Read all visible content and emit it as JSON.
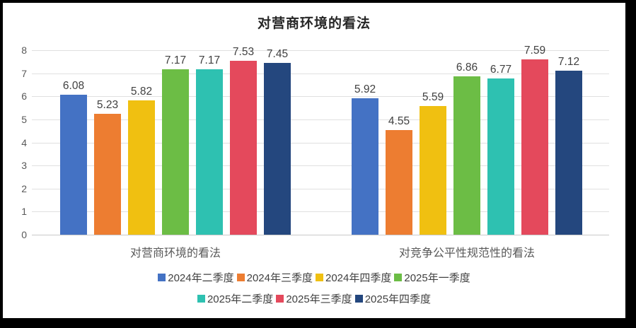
{
  "chart_data": {
    "type": "bar",
    "title": "对营商环境的看法",
    "categories": [
      "对营商环境的看法",
      "对竞争公平性规范性的看法"
    ],
    "series": [
      {
        "name": "2024年二季度",
        "color": "#4472C4",
        "values": [
          6.08,
          5.92
        ]
      },
      {
        "name": "2024年三季度",
        "color": "#ED7D31",
        "values": [
          5.23,
          4.55
        ]
      },
      {
        "name": "2024年四季度",
        "color": "#F0C011",
        "values": [
          5.82,
          5.59
        ]
      },
      {
        "name": "2025年一季度",
        "color": "#6CBD45",
        "values": [
          7.17,
          6.86
        ]
      },
      {
        "name": "2025年二季度",
        "color": "#2EC1B1",
        "values": [
          7.17,
          6.77
        ]
      },
      {
        "name": "2025年三季度",
        "color": "#E4495C",
        "values": [
          7.53,
          7.59
        ]
      },
      {
        "name": "2025年四季度",
        "color": "#24477E",
        "values": [
          7.45,
          7.12
        ]
      }
    ],
    "ylim": [
      0,
      8
    ],
    "yticks": [
      0,
      1,
      2,
      3,
      4,
      5,
      6,
      7,
      8
    ],
    "grid": true,
    "data_labels": true,
    "legend_position": "bottom",
    "legend_rows": [
      4,
      3
    ]
  },
  "style": {
    "frame_border_color": "#000000",
    "background": "#ffffff",
    "gridline_color": "#E0E0E0",
    "axis_line_color": "#C9C9C9",
    "tick_label_color": "#595959",
    "category_label_color": "#595959",
    "data_label_color": "#404040",
    "legend_text_color": "#404040",
    "title_color": "#262626"
  }
}
